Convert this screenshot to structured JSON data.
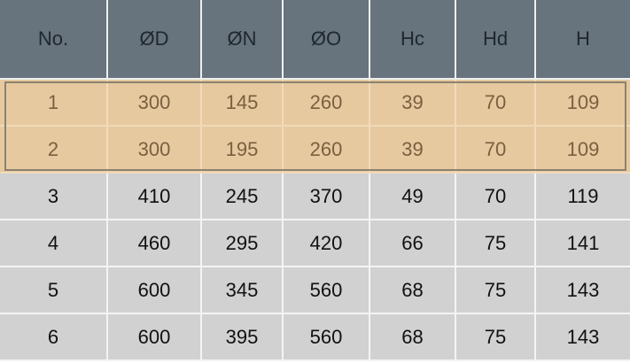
{
  "table": {
    "headers": [
      "No.",
      "ØD",
      "ØN",
      "ØO",
      "Hc",
      "Hd",
      "H"
    ],
    "rows": [
      [
        "1",
        "300",
        "145",
        "260",
        "39",
        "70",
        "109"
      ],
      [
        "2",
        "300",
        "195",
        "260",
        "39",
        "70",
        "109"
      ],
      [
        "3",
        "410",
        "245",
        "370",
        "49",
        "70",
        "119"
      ],
      [
        "4",
        "460",
        "295",
        "420",
        "66",
        "75",
        "141"
      ],
      [
        "5",
        "600",
        "345",
        "560",
        "68",
        "75",
        "143"
      ],
      [
        "6",
        "600",
        "395",
        "560",
        "68",
        "75",
        "143"
      ]
    ],
    "highlighted_rows": [
      "1",
      "2"
    ]
  },
  "colors": {
    "header_bg": "#67737d",
    "row_bg": "#d1d1d1",
    "highlight_bg": "#e6c99f",
    "highlight_text": "#7a6040",
    "highlight_border": "#8c8170"
  }
}
